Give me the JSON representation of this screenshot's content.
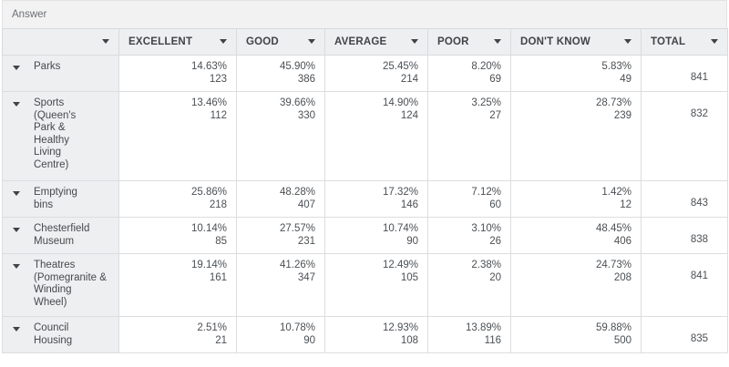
{
  "answer_label": "Answer",
  "columns": [
    {
      "label": ""
    },
    {
      "label": "EXCELLENT"
    },
    {
      "label": "GOOD"
    },
    {
      "label": "AVERAGE"
    },
    {
      "label": "POOR"
    },
    {
      "label": "DON'T KNOW"
    },
    {
      "label": "TOTAL"
    }
  ],
  "rows": [
    {
      "label": "Parks",
      "total": "841",
      "cells": [
        {
          "pct": "14.63%",
          "count": "123"
        },
        {
          "pct": "45.90%",
          "count": "386"
        },
        {
          "pct": "25.45%",
          "count": "214"
        },
        {
          "pct": "8.20%",
          "count": "69"
        },
        {
          "pct": "5.83%",
          "count": "49"
        }
      ]
    },
    {
      "label": "Sports (Queen's Park & Healthy Living Centre)",
      "total": "832",
      "cells": [
        {
          "pct": "13.46%",
          "count": "112"
        },
        {
          "pct": "39.66%",
          "count": "330"
        },
        {
          "pct": "14.90%",
          "count": "124"
        },
        {
          "pct": "3.25%",
          "count": "27"
        },
        {
          "pct": "28.73%",
          "count": "239"
        }
      ]
    },
    {
      "label": "Emptying bins",
      "total": "843",
      "cells": [
        {
          "pct": "25.86%",
          "count": "218"
        },
        {
          "pct": "48.28%",
          "count": "407"
        },
        {
          "pct": "17.32%",
          "count": "146"
        },
        {
          "pct": "7.12%",
          "count": "60"
        },
        {
          "pct": "1.42%",
          "count": "12"
        }
      ]
    },
    {
      "label": "Chesterfield Museum",
      "total": "838",
      "cells": [
        {
          "pct": "10.14%",
          "count": "85"
        },
        {
          "pct": "27.57%",
          "count": "231"
        },
        {
          "pct": "10.74%",
          "count": "90"
        },
        {
          "pct": "3.10%",
          "count": "26"
        },
        {
          "pct": "48.45%",
          "count": "406"
        }
      ]
    },
    {
      "label": "Theatres (Pomegranite & Winding Wheel)",
      "total": "841",
      "cells": [
        {
          "pct": "19.14%",
          "count": "161"
        },
        {
          "pct": "41.26%",
          "count": "347"
        },
        {
          "pct": "12.49%",
          "count": "105"
        },
        {
          "pct": "2.38%",
          "count": "20"
        },
        {
          "pct": "24.73%",
          "count": "208"
        }
      ]
    },
    {
      "label": "Council Housing",
      "total": "835",
      "cells": [
        {
          "pct": "2.51%",
          "count": "21"
        },
        {
          "pct": "10.78%",
          "count": "90"
        },
        {
          "pct": "12.93%",
          "count": "108"
        },
        {
          "pct": "13.89%",
          "count": "116"
        },
        {
          "pct": "59.88%",
          "count": "500"
        }
      ]
    }
  ]
}
